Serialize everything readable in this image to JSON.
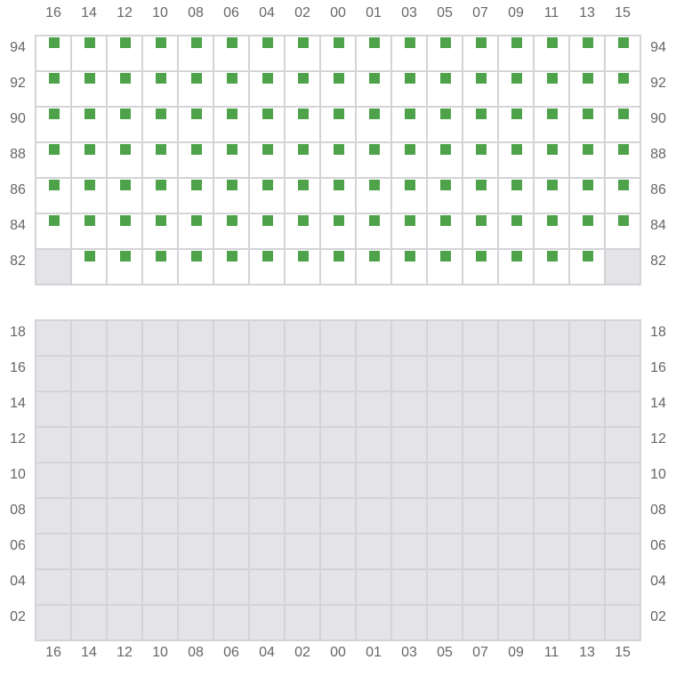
{
  "columns": [
    "16",
    "14",
    "12",
    "10",
    "08",
    "06",
    "04",
    "02",
    "00",
    "01",
    "03",
    "05",
    "07",
    "09",
    "11",
    "13",
    "15"
  ],
  "sections": [
    {
      "rows": [
        {
          "label": "94",
          "unavailable": []
        },
        {
          "label": "92",
          "unavailable": []
        },
        {
          "label": "90",
          "unavailable": []
        },
        {
          "label": "88",
          "unavailable": []
        },
        {
          "label": "86",
          "unavailable": []
        },
        {
          "label": "84",
          "unavailable": []
        },
        {
          "label": "82",
          "unavailable": [
            "16",
            "15"
          ]
        }
      ],
      "has_seats": true,
      "show_top_labels": true
    },
    {
      "rows": [
        {
          "label": "18"
        },
        {
          "label": "16"
        },
        {
          "label": "14"
        },
        {
          "label": "12"
        },
        {
          "label": "10"
        },
        {
          "label": "08"
        },
        {
          "label": "06"
        },
        {
          "label": "04"
        },
        {
          "label": "02"
        }
      ],
      "has_seats": false,
      "show_bottom_labels": true
    }
  ],
  "colors": {
    "seat": "#4ea24a",
    "unavailable": "#e4e4e7",
    "grid": "#d4d4d8"
  }
}
